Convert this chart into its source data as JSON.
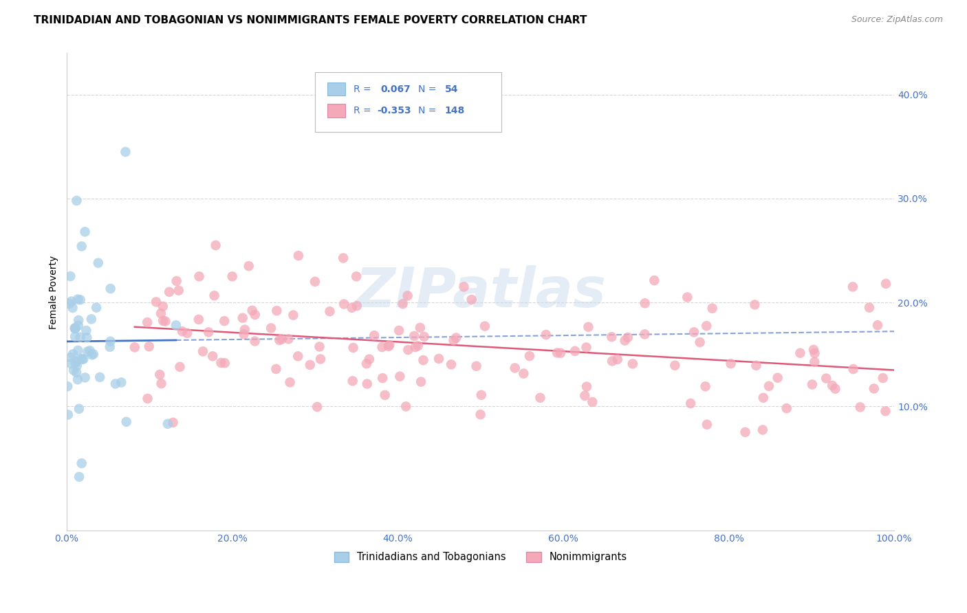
{
  "title": "TRINIDADIAN AND TOBAGONIAN VS NONIMMIGRANTS FEMALE POVERTY CORRELATION CHART",
  "source": "Source: ZipAtlas.com",
  "ylabel": "Female Poverty",
  "xlabel_ticks": [
    "0.0%",
    "20.0%",
    "40.0%",
    "60.0%",
    "80.0%",
    "100.0%"
  ],
  "ylabel_ticks": [
    "10.0%",
    "20.0%",
    "30.0%",
    "40.0%"
  ],
  "xlim": [
    0.0,
    1.0
  ],
  "ylim": [
    -0.02,
    0.44
  ],
  "blue_R": 0.067,
  "blue_N": 54,
  "pink_R": -0.353,
  "pink_N": 148,
  "blue_color": "#A8CEE8",
  "pink_color": "#F4A8B8",
  "blue_line_color": "#4472C4",
  "pink_line_color": "#E05878",
  "title_fontsize": 11,
  "source_fontsize": 9,
  "axis_color": "#4472C4",
  "legend_label_blue": "Trinidadians and Tobagonians",
  "legend_label_pink": "Nonimmigrants",
  "watermark": "ZIPatlas",
  "background_color": "#FFFFFF",
  "grid_color": "#CCCCCC"
}
